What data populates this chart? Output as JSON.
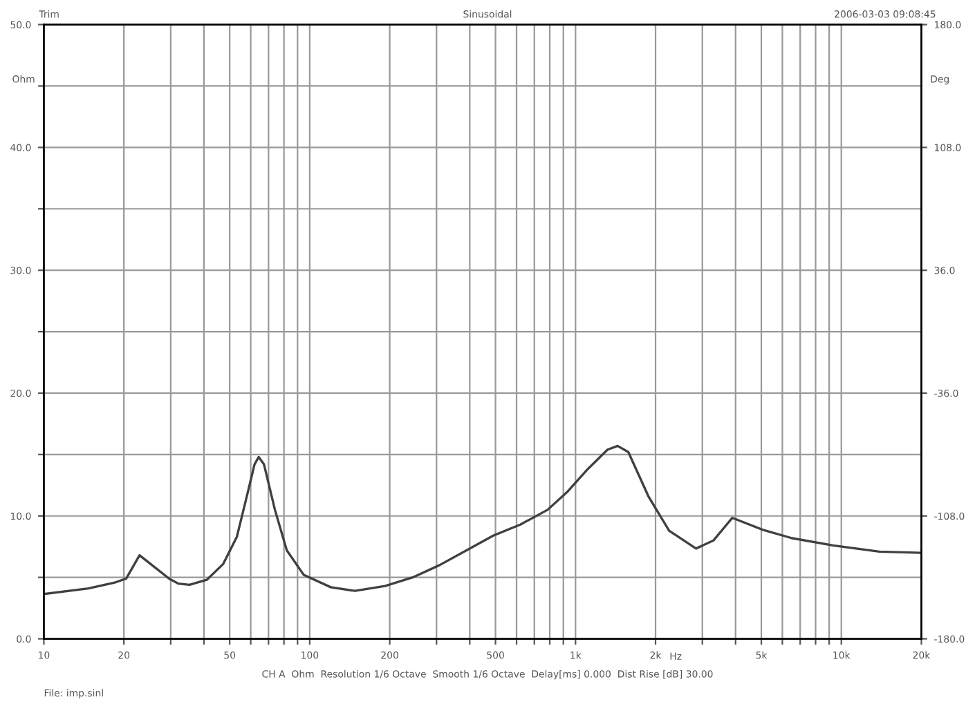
{
  "chart_data": {
    "type": "line",
    "title": "Sinusoidal",
    "annotations": [
      "Trim",
      "2006-03-03 09:08:45",
      "CH A  Ohm  Resolution 1/6 Octave  Smooth 1/6 Octave  Delay[ms] 0.000  Dist Rise [dB] 30.00",
      "File: imp.sinl"
    ],
    "ylabel": "Ohm",
    "y2label": "Deg",
    "xlabel": "Hz",
    "log": "x",
    "grid": true,
    "marker": "none",
    "line_style": "solid",
    "xlim": [
      10,
      20000
    ],
    "xticks": [
      10,
      20,
      {
        "value": 30,
        "label": null
      },
      {
        "value": 40,
        "label": null
      },
      50,
      {
        "value": 60,
        "label": null
      },
      {
        "value": 70,
        "label": null
      },
      {
        "value": 80,
        "label": null
      },
      {
        "value": 90,
        "label": null
      },
      100,
      200,
      {
        "value": 300,
        "label": null
      },
      {
        "value": 400,
        "label": null
      },
      500,
      {
        "value": 600,
        "label": null
      },
      {
        "value": 700,
        "label": null
      },
      {
        "value": 800,
        "label": null
      },
      {
        "value": 900,
        "label": null
      },
      {
        "value": 1000,
        "label": "1k"
      },
      {
        "value": 2000,
        "label": "2k"
      },
      {
        "value": 3000,
        "label": null
      },
      {
        "value": 4000,
        "label": null
      },
      {
        "value": 5000,
        "label": "5k"
      },
      {
        "value": 6000,
        "label": null
      },
      {
        "value": 7000,
        "label": null
      },
      {
        "value": 8000,
        "label": null
      },
      {
        "value": 9000,
        "label": null
      },
      {
        "value": 10000,
        "label": "10k"
      },
      {
        "value": 20000,
        "label": "20k"
      }
    ],
    "ylim": [
      0,
      50
    ],
    "yticks": [
      {
        "value": 0,
        "label": "0.0"
      },
      {
        "value": 5,
        "label": null
      },
      {
        "value": 10,
        "label": "10.0"
      },
      {
        "value": 15,
        "label": null
      },
      {
        "value": 20,
        "label": "20.0"
      },
      {
        "value": 25,
        "label": null
      },
      {
        "value": 30,
        "label": "30.0"
      },
      {
        "value": 35,
        "label": null
      },
      {
        "value": 40,
        "label": "40.0"
      },
      {
        "value": 45,
        "label": null
      },
      {
        "value": 50,
        "label": "50.0"
      }
    ],
    "y2lim": [
      -180,
      180
    ],
    "y2ticks": [
      {
        "value": -180,
        "label": "-180.0"
      },
      {
        "value": -108,
        "label": "-108.0"
      },
      {
        "value": -36,
        "label": "-36.0"
      },
      {
        "value": 36,
        "label": "36.0"
      },
      {
        "value": 108,
        "label": "108.0"
      },
      {
        "value": 180,
        "label": "180.0"
      }
    ],
    "x": [
      10,
      14.7,
      18.6,
      20.4,
      22.9,
      26.4,
      29.6,
      32,
      35.3,
      41,
      47.3,
      53.2,
      58,
      62,
      64.3,
      67.3,
      74,
      82,
      95,
      120,
      148,
      192,
      244,
      308,
      389,
      490,
      620,
      785,
      935,
      1110,
      1320,
      1440,
      1580,
      1880,
      2250,
      2840,
      3300,
      3890,
      5100,
      6500,
      9300,
      13900,
      20000
    ],
    "series": [
      {
        "color": "#404040",
        "values": [
          3.65,
          4.1,
          4.6,
          4.9,
          6.8,
          5.75,
          4.9,
          4.5,
          4.4,
          4.8,
          6.1,
          8.3,
          11.6,
          14.2,
          14.8,
          14.2,
          10.5,
          7.2,
          5.2,
          4.2,
          3.9,
          4.3,
          5.0,
          6.0,
          7.2,
          8.4,
          9.3,
          10.5,
          12.0,
          13.8,
          15.4,
          15.7,
          15.2,
          11.6,
          8.8,
          7.35,
          8.0,
          9.85,
          8.85,
          8.2,
          7.6,
          7.1,
          7.0
        ]
      }
    ]
  }
}
